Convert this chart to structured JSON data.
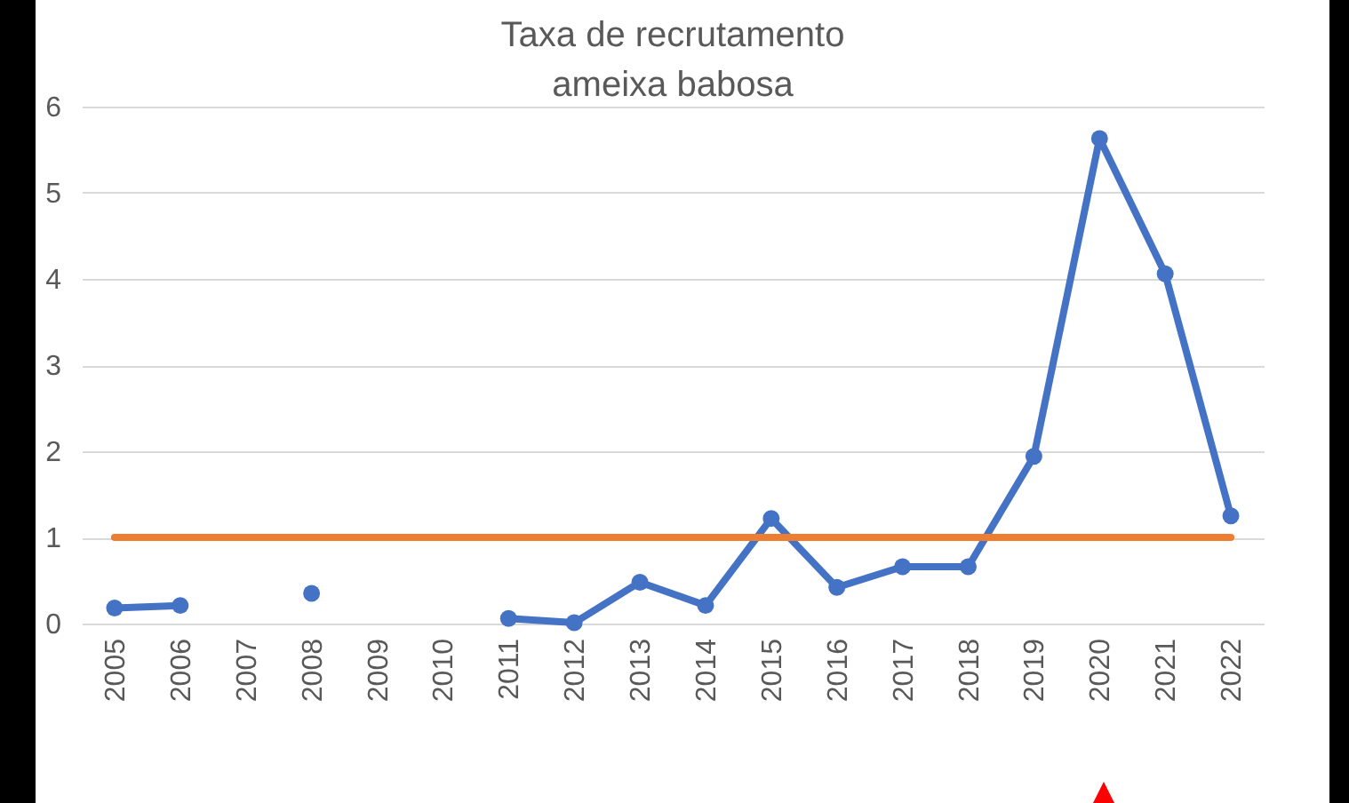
{
  "chart_data": {
    "type": "line",
    "title": "Taxa de recrutamento\nameixa babosa",
    "categories": [
      "2005",
      "2006",
      "2007",
      "2008",
      "2009",
      "2010",
      "2011",
      "2012",
      "2013",
      "2014",
      "2015",
      "2016",
      "2017",
      "2018",
      "2019",
      "2020",
      "2021",
      "2022"
    ],
    "series": [
      {
        "color": "#4472c4",
        "marker": "circle",
        "values": [
          0.18,
          0.21,
          null,
          0.35,
          null,
          null,
          0.06,
          0.01,
          0.48,
          0.21,
          1.22,
          0.42,
          0.66,
          0.66,
          1.94,
          5.63,
          4.06,
          1.25
        ]
      },
      {
        "color": "#ed7d31",
        "marker": "none",
        "values": [
          1,
          1,
          1,
          1,
          1,
          1,
          1,
          1,
          1,
          1,
          1,
          1,
          1,
          1,
          1,
          1,
          1,
          1
        ]
      }
    ],
    "ylim": [
      0,
      6
    ],
    "yticks": [
      0,
      1,
      2,
      3,
      4,
      5,
      6
    ],
    "grid": "y"
  }
}
